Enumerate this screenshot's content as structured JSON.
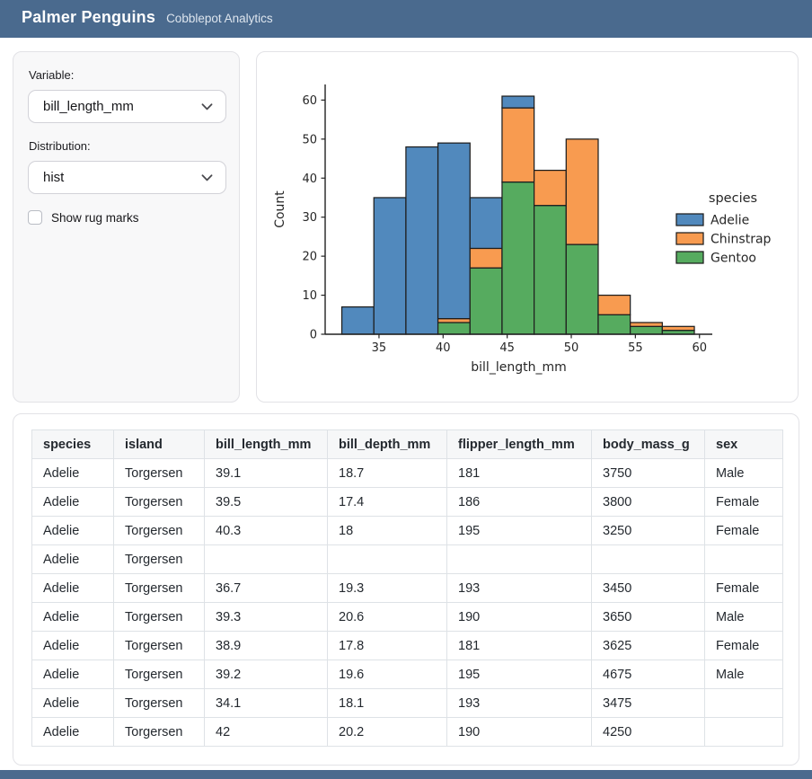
{
  "header": {
    "title": "Palmer Penguins",
    "subtitle": "Cobblepot Analytics"
  },
  "sidebar": {
    "variable_label": "Variable:",
    "variable_value": "bill_length_mm",
    "distribution_label": "Distribution:",
    "distribution_value": "hist",
    "rug_checkbox_label": "Show rug marks",
    "rug_checked": false
  },
  "chart_data": {
    "type": "bar",
    "subtype": "stacked-histogram",
    "title": "",
    "xlabel": "bill_length_mm",
    "ylabel": "Count",
    "xlim": [
      30.8,
      61.0
    ],
    "ylim": [
      0,
      64
    ],
    "xticks": [
      35,
      40,
      45,
      50,
      55,
      60
    ],
    "yticks": [
      0,
      10,
      20,
      30,
      40,
      50,
      60
    ],
    "grid": false,
    "bin_edges": [
      32.1,
      34.6,
      37.1,
      39.6,
      42.1,
      44.6,
      47.1,
      49.6,
      52.1,
      54.6,
      57.1,
      59.6
    ],
    "stack_order_bottom_to_top": [
      "Gentoo",
      "Chinstrap",
      "Adelie"
    ],
    "series": [
      {
        "name": "Gentoo",
        "color": "#56ab5f",
        "values": [
          0,
          0,
          0,
          3,
          17,
          39,
          33,
          23,
          5,
          2,
          1
        ]
      },
      {
        "name": "Chinstrap",
        "color": "#f89b50",
        "values": [
          0,
          0,
          0,
          1,
          5,
          19,
          9,
          27,
          5,
          1,
          1
        ]
      },
      {
        "name": "Adelie",
        "color": "#5189bd",
        "values": [
          7,
          35,
          48,
          45,
          13,
          3,
          0,
          0,
          0,
          0,
          0
        ]
      }
    ],
    "bin_totals": [
      7,
      35,
      48,
      49,
      35,
      61,
      42,
      50,
      10,
      3,
      2
    ],
    "legend": {
      "title": "species",
      "position": "right",
      "entries": [
        {
          "label": "Adelie",
          "color": "#5189bd"
        },
        {
          "label": "Chinstrap",
          "color": "#f89b50"
        },
        {
          "label": "Gentoo",
          "color": "#56ab5f"
        }
      ]
    },
    "edge_color": "#1e1e1e"
  },
  "table": {
    "columns": [
      "species",
      "island",
      "bill_length_mm",
      "bill_depth_mm",
      "flipper_length_mm",
      "body_mass_g",
      "sex"
    ],
    "rows": [
      [
        "Adelie",
        "Torgersen",
        "39.1",
        "18.7",
        "181",
        "3750",
        "Male"
      ],
      [
        "Adelie",
        "Torgersen",
        "39.5",
        "17.4",
        "186",
        "3800",
        "Female"
      ],
      [
        "Adelie",
        "Torgersen",
        "40.3",
        "18",
        "195",
        "3250",
        "Female"
      ],
      [
        "Adelie",
        "Torgersen",
        "",
        "",
        "",
        "",
        ""
      ],
      [
        "Adelie",
        "Torgersen",
        "36.7",
        "19.3",
        "193",
        "3450",
        "Female"
      ],
      [
        "Adelie",
        "Torgersen",
        "39.3",
        "20.6",
        "190",
        "3650",
        "Male"
      ],
      [
        "Adelie",
        "Torgersen",
        "38.9",
        "17.8",
        "181",
        "3625",
        "Female"
      ],
      [
        "Adelie",
        "Torgersen",
        "39.2",
        "19.6",
        "195",
        "4675",
        "Male"
      ],
      [
        "Adelie",
        "Torgersen",
        "34.1",
        "18.1",
        "193",
        "3475",
        ""
      ],
      [
        "Adelie",
        "Torgersen",
        "42",
        "20.2",
        "190",
        "4250",
        ""
      ]
    ]
  },
  "colors": {
    "header_bg": "#4a6a8e",
    "footer_bg": "#4a6a8e",
    "table_border": "#dee2e6",
    "table_header_bg": "#f6f7f8"
  }
}
